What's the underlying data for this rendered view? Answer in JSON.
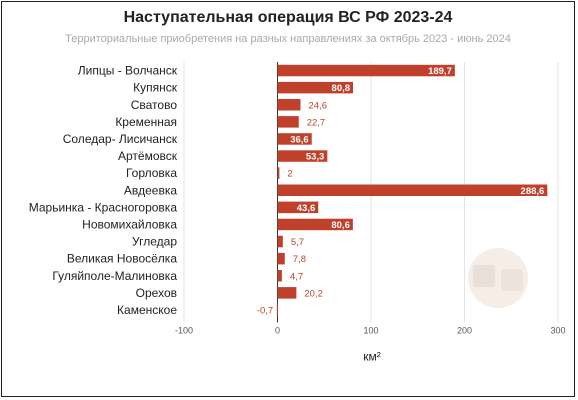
{
  "title": "Наступательная операция ВС РФ 2023-24",
  "subtitle": "Территориальные приобретения на разных направлениях за октябрь 2023 - июнь 2024",
  "chart_data": {
    "type": "bar",
    "orientation": "horizontal",
    "title": "Наступательная операция ВС РФ 2023-24",
    "subtitle": "Территориальные приобретения на разных направлениях за октябрь 2023 - июнь 2024",
    "categories": [
      "Липцы - Волчанск",
      "Купянск",
      "Сватово",
      "Кременная",
      "Соледар- Лисичанск",
      "Артёмовск",
      "Горловка",
      "Авдеевка",
      "Марьинка - Красногоровка",
      "Новомихайловка",
      "Угледар",
      "Великая Новосёлка",
      "Гуляйполе-Малиновка",
      "Орехов",
      "Каменское"
    ],
    "values": [
      189.7,
      80.8,
      24.6,
      22.7,
      36.6,
      53.3,
      2,
      288.6,
      43.6,
      80.6,
      5.7,
      7.8,
      4.7,
      20.2,
      -0.7
    ],
    "value_labels": [
      "189,7",
      "80,8",
      "24,6",
      "22,7",
      "36,6",
      "53,3",
      "2",
      "288,6",
      "43,6",
      "80,6",
      "5,7",
      "7,8",
      "4,7",
      "20,2",
      "-0,7"
    ],
    "xlabel": "км²",
    "ylabel": "",
    "xlim": [
      -100,
      300
    ],
    "xticks": [
      -100,
      0,
      100,
      200,
      300
    ],
    "xtick_labels": [
      "-100",
      "0",
      "100",
      "200",
      "300"
    ],
    "grid": true,
    "legend": "none",
    "bar_color": "#c0412b"
  }
}
